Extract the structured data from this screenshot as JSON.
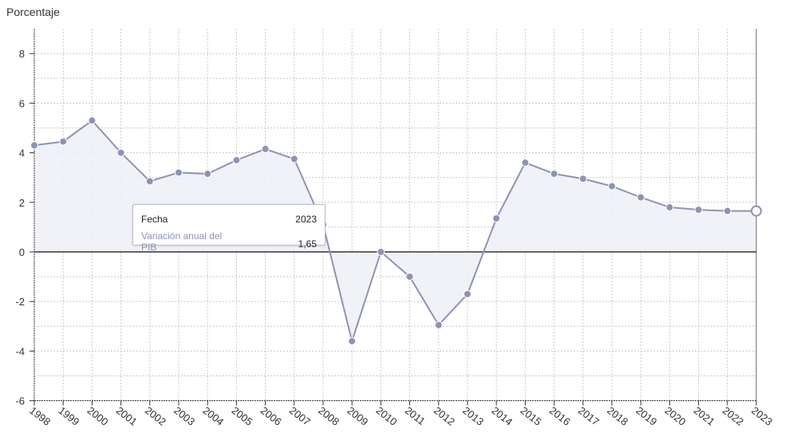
{
  "chart_data": {
    "type": "area",
    "ylabel": "Porcentaje",
    "xlabel": "",
    "ylim": [
      -6,
      9
    ],
    "yticks": [
      -6,
      -4,
      -2,
      0,
      2,
      4,
      6,
      8
    ],
    "grid": true,
    "x": [
      "1998",
      "1999",
      "2000",
      "2001",
      "2002",
      "2003",
      "2004",
      "2005",
      "2006",
      "2007",
      "2008",
      "2009",
      "2010",
      "2011",
      "2012",
      "2013",
      "2014",
      "2015",
      "2016",
      "2017",
      "2018",
      "2019",
      "2020",
      "2021",
      "2022",
      "2023"
    ],
    "series": [
      {
        "name": "Variación anual del PIB",
        "values": [
          4.3,
          4.45,
          5.3,
          4.0,
          2.85,
          3.2,
          3.15,
          3.7,
          4.15,
          3.75,
          1.1,
          -3.6,
          0.0,
          -1.0,
          -2.95,
          -1.7,
          1.35,
          3.6,
          3.15,
          2.95,
          2.65,
          2.2,
          1.8,
          1.7,
          1.65,
          1.65
        ],
        "color": "#8e93b4"
      }
    ],
    "tooltip": {
      "label1": "Fecha",
      "value1": "2023",
      "label2": "Variación anual del PIB",
      "value2": "1,65"
    },
    "highlighted_index": 25
  }
}
